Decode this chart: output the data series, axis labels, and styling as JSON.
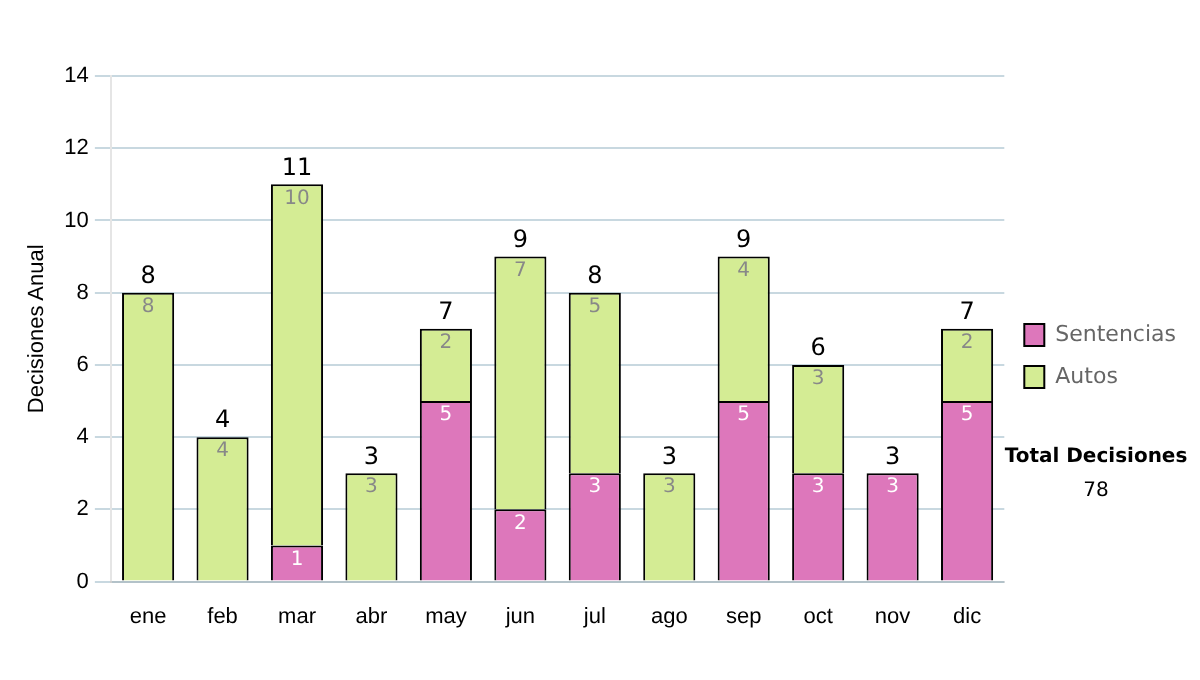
{
  "chart_data": {
    "type": "bar",
    "stacked": true,
    "ylabel": "Decisiones Anual",
    "categories": [
      "ene",
      "feb",
      "mar",
      "abr",
      "may",
      "jun",
      "jul",
      "ago",
      "sep",
      "oct",
      "nov",
      "dic"
    ],
    "series": [
      {
        "name": "Sentencias",
        "color": "#dd77bb",
        "values": [
          0,
          0,
          1,
          0,
          5,
          2,
          3,
          0,
          5,
          3,
          3,
          5
        ],
        "value_labels": [
          null,
          null,
          "1",
          null,
          "5",
          "2",
          "3",
          null,
          "5",
          "3",
          "3",
          "5"
        ]
      },
      {
        "name": "Autos",
        "color": "#d4ec94",
        "values": [
          8,
          4,
          10,
          3,
          2,
          7,
          5,
          3,
          4,
          3,
          0,
          2
        ],
        "value_labels": [
          "8",
          "4",
          "10",
          "3",
          "2",
          "7",
          "5",
          "3",
          "4",
          "3",
          null,
          "2"
        ]
      }
    ],
    "totals": [
      "8",
      "4",
      "11",
      "3",
      "7",
      "9",
      "8",
      "3",
      "9",
      "6",
      "3",
      "7"
    ],
    "ylim": [
      0,
      14
    ],
    "yticks": [
      0,
      2,
      4,
      6,
      8,
      10,
      12,
      14
    ],
    "grid": "y",
    "legend": "right",
    "annotations": [
      "Total Decisiones",
      "78"
    ]
  }
}
